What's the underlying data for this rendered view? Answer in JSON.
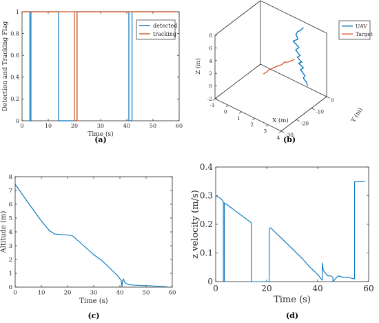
{
  "colors": {
    "blue": "#0072BD",
    "orange": "#D95319",
    "axis": "#262626",
    "grid3d": "#d9d9d9"
  },
  "chart_data": [
    {
      "panel": "a",
      "type": "line",
      "caption": "(a)",
      "xlabel": "Time (s)",
      "ylabel": "Detection and Tracking Flag",
      "xlim": [
        0,
        60
      ],
      "ylim": [
        0,
        1
      ],
      "xticks": [
        0,
        10,
        20,
        30,
        40,
        50,
        60
      ],
      "yticks": [
        0,
        0.2,
        0.4,
        0.6,
        0.8,
        1
      ],
      "ytick_labels": [
        "0",
        "0.2",
        "0.4",
        "0.6",
        "0.8",
        "1"
      ],
      "legend": "top-right",
      "series": [
        {
          "name": "detected",
          "color": "#0072BD",
          "x": [
            0,
            3.0,
            3.0,
            3.4,
            3.4,
            14.0,
            14.0,
            20.0,
            20.0,
            21.0,
            21.0,
            40.8,
            40.8,
            42.0,
            42.0,
            58.5
          ],
          "y": [
            1,
            1,
            0,
            0,
            1,
            1,
            0,
            0,
            0,
            0,
            1,
            1,
            0,
            0,
            1,
            1
          ]
        },
        {
          "name": "tracking",
          "color": "#D95319",
          "x": [
            0,
            20.0,
            20.0,
            21.0,
            21.0,
            58.5
          ],
          "y": [
            1,
            1,
            0,
            0,
            1,
            1
          ]
        }
      ]
    },
    {
      "panel": "b",
      "type": "line",
      "caption": "(b)",
      "xlabel": "X (m)",
      "ylabel": "Y (m)",
      "zlabel": "Z (m)",
      "xlim": [
        -1,
        4
      ],
      "ylim": [
        -30,
        0
      ],
      "zlim": [
        -2,
        8
      ],
      "xticks": [
        -1,
        0,
        1,
        2,
        3,
        4
      ],
      "yticks": [
        -30,
        -20,
        -10,
        0
      ],
      "zticks": [
        -2,
        0,
        2,
        4,
        6,
        8
      ],
      "legend": "top-right",
      "series": [
        {
          "name": "UAV",
          "color": "#0072BD",
          "x": [
            2.6,
            2.5,
            2.45,
            2.3,
            2.2,
            2.4,
            2.1,
            2.6,
            2.4,
            2.8,
            2.6,
            3.0,
            2.8,
            3.2,
            3.0,
            3.4,
            3.3,
            3.6,
            3.7
          ],
          "y": [
            -3.0,
            -3.5,
            -4.0,
            -4.2,
            -4.5,
            -5.0,
            -5.5,
            -6.0,
            -6.5,
            -7.0,
            -7.2,
            -7.6,
            -8.0,
            -8.3,
            -8.6,
            -9.0,
            -9.3,
            -9.6,
            -10.0
          ],
          "z": [
            8.0,
            7.7,
            7.5,
            7.3,
            6.8,
            6.3,
            5.8,
            5.4,
            4.9,
            4.5,
            4.1,
            3.8,
            3.5,
            3.2,
            2.8,
            2.3,
            1.9,
            1.5,
            1.2
          ]
        },
        {
          "name": "Target",
          "color": "#D95319",
          "x": [
            1.8,
            1.7,
            1.5,
            1.5,
            1.2,
            1.25,
            1.15,
            1.1,
            1.0,
            0.9,
            0.95,
            1.0,
            0.8,
            0.8,
            0.6,
            0.45,
            0.3
          ],
          "y": [
            -2.0,
            -2.4,
            -2.8,
            -3.3,
            -3.5,
            -4.0,
            -4.5,
            -5.0,
            -5.7,
            -6.3,
            -7.0,
            -7.5,
            -8.0,
            -8.3,
            -8.6,
            -9.0,
            -9.4
          ],
          "z": [
            2.0,
            1.8,
            1.5,
            1.5,
            1.2,
            1.3,
            1.0,
            0.9,
            0.8,
            0.7,
            0.8,
            1.0,
            0.6,
            0.6,
            0.3,
            -0.2,
            -0.5
          ]
        }
      ]
    },
    {
      "panel": "c",
      "type": "line",
      "caption": "(c)",
      "xlabel": "Time (s)",
      "ylabel": "Altitude (m)",
      "xlim": [
        0,
        60
      ],
      "ylim": [
        0,
        8
      ],
      "xticks": [
        0,
        10,
        20,
        30,
        40,
        50,
        60
      ],
      "yticks": [
        0,
        1,
        2,
        3,
        4,
        5,
        6,
        7,
        8
      ],
      "series": [
        {
          "color": "#0072BD",
          "x": [
            0,
            5,
            10,
            13,
            15,
            18,
            20,
            21,
            22,
            25,
            30,
            33,
            36,
            39,
            40.5,
            40.8,
            41.0,
            41.3,
            41.6,
            42.0,
            43,
            45,
            48,
            52,
            55,
            58
          ],
          "y": [
            7.45,
            6.1,
            4.8,
            4.1,
            3.85,
            3.8,
            3.78,
            3.75,
            3.7,
            3.2,
            2.35,
            1.95,
            1.4,
            0.85,
            0.5,
            0.05,
            0.4,
            0.6,
            0.45,
            0.3,
            0.2,
            0.15,
            0.12,
            0.1,
            0.05,
            0.02
          ]
        }
      ]
    },
    {
      "panel": "d",
      "type": "line",
      "caption": "(d)",
      "xlabel": "Time (s)",
      "ylabel": "z velocity (m/s)",
      "xlim": [
        0,
        60
      ],
      "ylim": [
        0,
        0.4
      ],
      "xticks": [
        0,
        20,
        40,
        60
      ],
      "yticks": [
        0,
        0.1,
        0.2,
        0.3,
        0.4
      ],
      "series": [
        {
          "color": "#0072BD",
          "x": [
            0,
            2,
            3.0,
            3.0,
            3.4,
            3.4,
            5,
            8,
            11,
            14,
            14,
            21,
            21,
            21.5,
            23,
            26,
            30,
            34,
            37,
            40,
            41.8,
            41.8,
            42.2,
            42.5,
            43,
            44,
            45,
            46,
            46,
            48,
            50,
            52,
            54,
            54.5,
            54.5,
            58.5
          ],
          "y": [
            0.3,
            0.29,
            0.28,
            0.0,
            0.0,
            0.275,
            0.265,
            0.245,
            0.225,
            0.205,
            0.0,
            0.0,
            0.185,
            0.188,
            0.175,
            0.15,
            0.115,
            0.08,
            0.05,
            0.025,
            0.005,
            0.065,
            0.04,
            0.035,
            0.03,
            0.02,
            0.02,
            0.015,
            0.0,
            0.02,
            0.015,
            0.015,
            0.01,
            0.01,
            0.35,
            0.35
          ]
        }
      ]
    }
  ]
}
